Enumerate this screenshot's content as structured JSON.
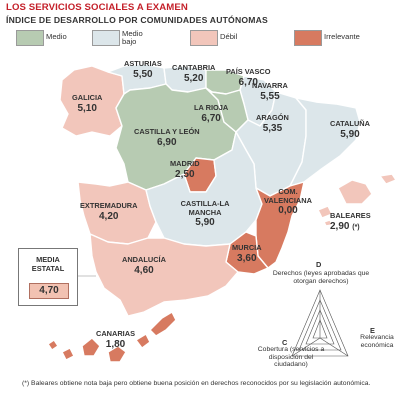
{
  "title": "LOS SERVICIOS SOCIALES A EXAMEN",
  "subtitle": "ÍNDICE DE DESARROLLO POR COMUNIDADES AUTÓNOMAS",
  "legend": [
    {
      "label": "Medio",
      "color": "#b7cbb2"
    },
    {
      "label": "Medio bajo",
      "color": "#dce6ea"
    },
    {
      "label": "Débil",
      "color": "#f2c6bb"
    },
    {
      "label": "Irrelevante",
      "color": "#d77a60"
    }
  ],
  "regions": [
    {
      "name": "GALICIA",
      "value": "5,10"
    },
    {
      "name": "ASTURIAS",
      "value": "5,50"
    },
    {
      "name": "CANTABRIA",
      "value": "5,20"
    },
    {
      "name": "PAÍS VASCO",
      "value": "6,70"
    },
    {
      "name": "NAVARRA",
      "value": "5,55"
    },
    {
      "name": "LA RIOJA",
      "value": "6,70"
    },
    {
      "name": "ARAGÓN",
      "value": "5,35"
    },
    {
      "name": "CATALUÑA",
      "value": "5,90"
    },
    {
      "name": "CASTILLA Y LEÓN",
      "value": "6,90"
    },
    {
      "name": "MADRID",
      "value": "2,50"
    },
    {
      "name": "EXTREMADURA",
      "value": "4,20"
    },
    {
      "name": "CASTILLA-LA MANCHA",
      "value": "5,90"
    },
    {
      "name": "COM. VALENCIANA",
      "value": "0,00"
    },
    {
      "name": "BALEARES",
      "value": "2,90",
      "note": "(*)"
    },
    {
      "name": "MURCIA",
      "value": "3,60"
    },
    {
      "name": "ANDALUCÍA",
      "value": "4,60"
    },
    {
      "name": "CANARIAS",
      "value": "1,80"
    }
  ],
  "media": {
    "title": "MEDIA ESTATAL",
    "value": "4,70"
  },
  "diagram": {
    "d_letter": "D",
    "d_text": "Derechos (leyes aprobadas que otorgan derechos)",
    "c_letter": "C",
    "c_text": "Cobertura (servicios a disposición del ciudadano)",
    "e_letter": "E",
    "e_text": "Relevancia económica"
  },
  "footnote": "(*) Baleares obtiene nota baja pero obtiene buena posición en derechos reconocidos por su legislación autonómica.",
  "colors": {
    "title": "#c4202a",
    "medio": "#b7cbb2",
    "medio_bajo": "#dce6ea",
    "debil": "#f2c6bb",
    "irrelevante": "#d77a60",
    "border": "#ffffff"
  }
}
